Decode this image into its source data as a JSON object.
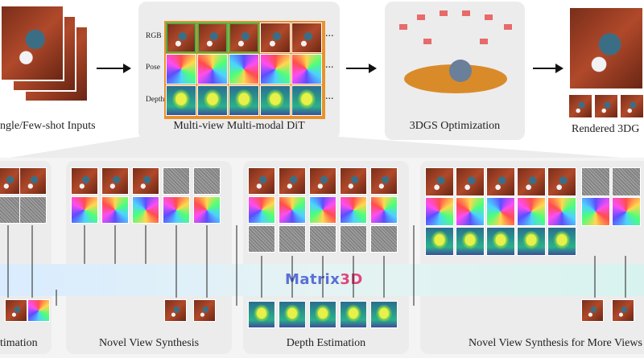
{
  "top": {
    "input_caption": "ngle/Few-shot Inputs",
    "dit_caption": "Multi-view Multi-modal DiT",
    "dit_rows": [
      "RGB",
      "Pose",
      "Depth"
    ],
    "ellipsis": "...",
    "gs_caption": "3DGS Optimization",
    "render_caption": "Rendered 3DG"
  },
  "bottom": {
    "brand_prefix": "Matrix",
    "brand_suffix": "3D",
    "brand_prefix_color": "#5b6fd6",
    "brand_suffix_color": "#e0457b",
    "captions": [
      "timation",
      "Novel View Synthesis",
      "Depth Estimation",
      "Novel View Synthesis for More Views"
    ]
  },
  "colors": {
    "highlight_green": "#45b649",
    "highlight_orange": "#e8922c",
    "panel_bg": "#ececec"
  }
}
